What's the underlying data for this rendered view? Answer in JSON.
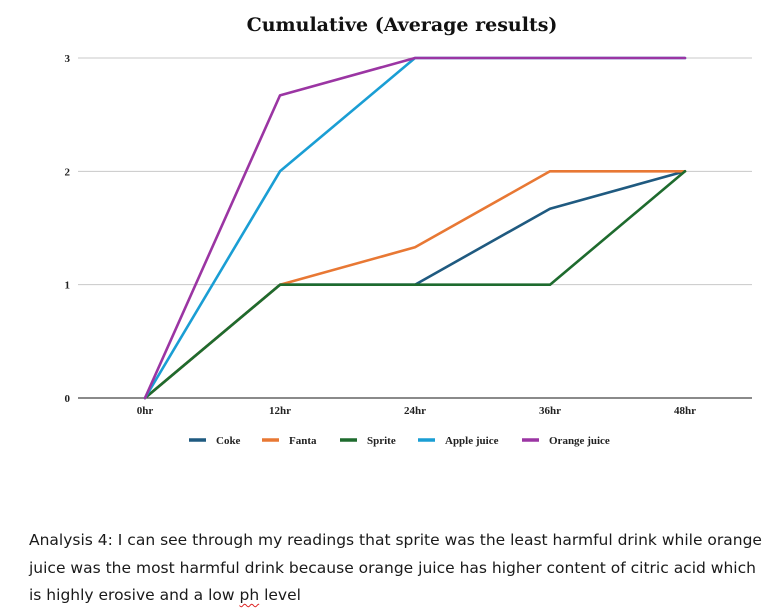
{
  "chart_data": {
    "type": "line",
    "title": "Cumulative (Average results)",
    "categories": [
      "0hr",
      "12hr",
      "24hr",
      "36hr",
      "48hr"
    ],
    "ylim": [
      0,
      3
    ],
    "yticks": [
      "0",
      "1",
      "2",
      "3"
    ],
    "grid": "horizontal",
    "legend_position": "bottom",
    "series": [
      {
        "name": "Coke",
        "color": "#1f5a80",
        "values": [
          0,
          1,
          1,
          1.67,
          2
        ]
      },
      {
        "name": "Fanta",
        "color": "#e87834",
        "values": [
          0,
          1,
          1.33,
          2,
          2
        ]
      },
      {
        "name": "Sprite",
        "color": "#1e6b2e",
        "values": [
          0,
          1,
          1,
          1,
          2
        ]
      },
      {
        "name": "Apple juice",
        "color": "#1a9ed4",
        "values": [
          0,
          2,
          3,
          3,
          3
        ]
      },
      {
        "name": "Orange juice",
        "color": "#9b35a3",
        "values": [
          0,
          2.67,
          3,
          3,
          3
        ]
      }
    ]
  },
  "analysis": {
    "text_before": "Analysis 4: I can see through my readings that sprite was the least harmful drink while orange juice was the most harmful drink because orange juice has higher content of citric acid which is highly erosive and a low ",
    "flagged_word": "ph",
    "text_after": " level"
  }
}
